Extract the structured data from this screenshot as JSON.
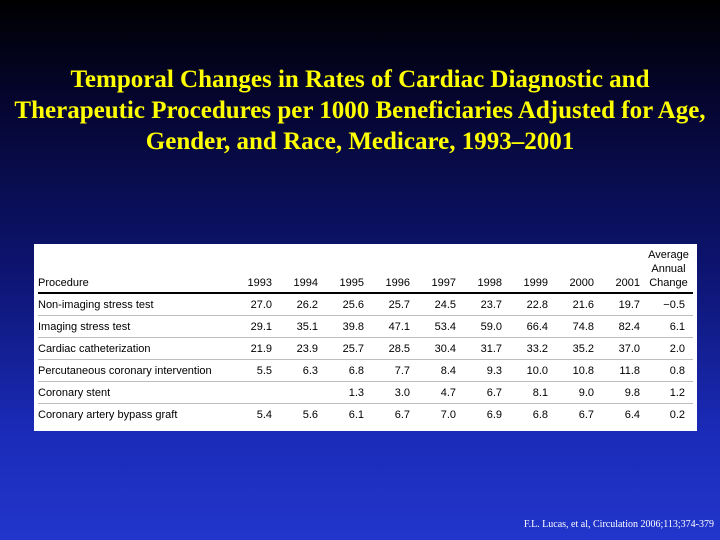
{
  "title": "Temporal Changes in Rates of Cardiac Diagnostic and Therapeutic Procedures per 1000 Beneficiaries Adjusted for Age, Gender, and Race, Medicare, 1993–2001",
  "table": {
    "procedure_header": "Procedure",
    "years": [
      "1993",
      "1994",
      "1995",
      "1996",
      "1997",
      "1998",
      "1999",
      "2000",
      "2001"
    ],
    "avg_header": [
      "Average",
      "Annual",
      "Change"
    ],
    "rows": [
      {
        "name": "Non-imaging stress test",
        "values": [
          "27.0",
          "26.2",
          "25.6",
          "25.7",
          "24.5",
          "23.7",
          "22.8",
          "21.6",
          "19.7"
        ],
        "avg": "−0.5"
      },
      {
        "name": "Imaging stress test",
        "values": [
          "29.1",
          "35.1",
          "39.8",
          "47.1",
          "53.4",
          "59.0",
          "66.4",
          "74.8",
          "82.4"
        ],
        "avg": "6.1"
      },
      {
        "name": "Cardiac catheterization",
        "values": [
          "21.9",
          "23.9",
          "25.7",
          "28.5",
          "30.4",
          "31.7",
          "33.2",
          "35.2",
          "37.0"
        ],
        "avg": "2.0"
      },
      {
        "name": "Percutaneous coronary intervention",
        "values": [
          "5.5",
          "6.3",
          "6.8",
          "7.7",
          "8.4",
          "9.3",
          "10.0",
          "10.8",
          "11.8"
        ],
        "avg": "0.8"
      },
      {
        "name": "Coronary stent",
        "values": [
          "",
          "",
          "1.3",
          "3.0",
          "4.7",
          "6.7",
          "8.1",
          "9.0",
          "9.8"
        ],
        "avg": "1.2"
      },
      {
        "name": "Coronary artery bypass graft",
        "values": [
          "5.4",
          "5.6",
          "6.1",
          "6.7",
          "7.0",
          "6.9",
          "6.8",
          "6.7",
          "6.4"
        ],
        "avg": "0.2"
      }
    ]
  },
  "citation": "F.L. Lucas, et al, Circulation 2006;113;374-379"
}
